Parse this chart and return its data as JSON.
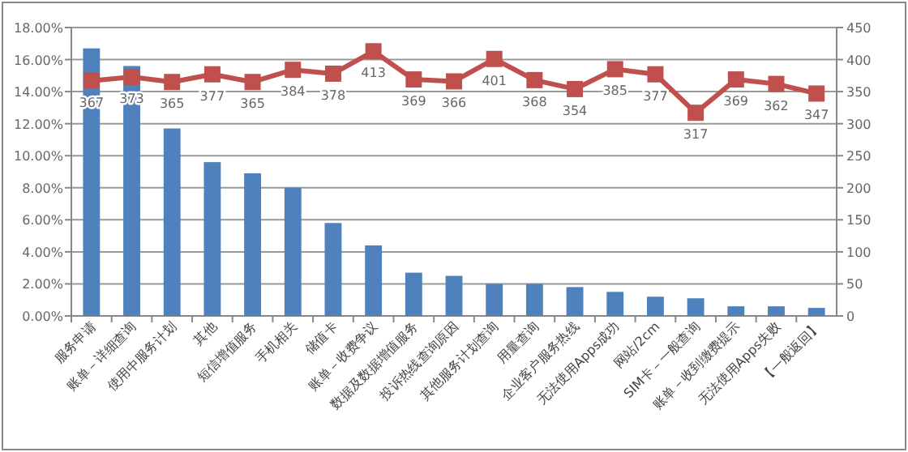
{
  "chart_data": {
    "type": "bar",
    "categories": [
      "服务申请",
      "账单－详细查询",
      "使用中服务计划",
      "其他",
      "短信增值服务",
      "手机相关",
      "储值卡",
      "账单－收费争议",
      "数据及数据增值服务",
      "投诉热线查询原因",
      "其他服务计划查询",
      "用量查询",
      "企业客户服务热线",
      "无法使用Apps成功",
      "网站/2cm",
      "SIM卡－一般查询",
      "账单－收到缴费提示",
      "无法使用Apps失败",
      "【一般返回】"
    ],
    "series": [
      {
        "color": "#4f81bd",
        "values": [
          16.7,
          15.6,
          11.7,
          9.6,
          8.9,
          8.0,
          5.8,
          4.4,
          2.7,
          2.5,
          2.0,
          2.0,
          1.8,
          1.5,
          1.2,
          1.1,
          0.6,
          0.6,
          0.5
        ]
      },
      {
        "type": "line",
        "axis": "y2",
        "color": "#c0504d",
        "marker": "square",
        "values": [
          367,
          373,
          365,
          377,
          365,
          384,
          378,
          413,
          369,
          366,
          401,
          368,
          354,
          385,
          377,
          317,
          369,
          362,
          347
        ],
        "value_labels": [
          "367",
          "373",
          "365",
          "377",
          "365",
          "384",
          "378",
          "413",
          "369",
          "366",
          "401",
          "368",
          "354",
          "385",
          "377",
          "317",
          "369",
          "362",
          "347"
        ]
      }
    ],
    "ylim": [
      0,
      18
    ],
    "yticks": [
      {
        "value": 0,
        "label": "0.00%"
      },
      {
        "value": 2,
        "label": "2.00%"
      },
      {
        "value": 4,
        "label": "4.00%"
      },
      {
        "value": 6,
        "label": "6.00%"
      },
      {
        "value": 8,
        "label": "8.00%"
      },
      {
        "value": 10,
        "label": "10.00%"
      },
      {
        "value": 12,
        "label": "12.00%"
      },
      {
        "value": 14,
        "label": "14.00%"
      },
      {
        "value": 16,
        "label": "16.00%"
      },
      {
        "value": 18,
        "label": "18.00%"
      }
    ],
    "y2lim": [
      0,
      450
    ],
    "y2ticks": [
      0,
      50,
      100,
      150,
      200,
      250,
      300,
      350,
      400,
      450
    ],
    "grid": "y"
  }
}
